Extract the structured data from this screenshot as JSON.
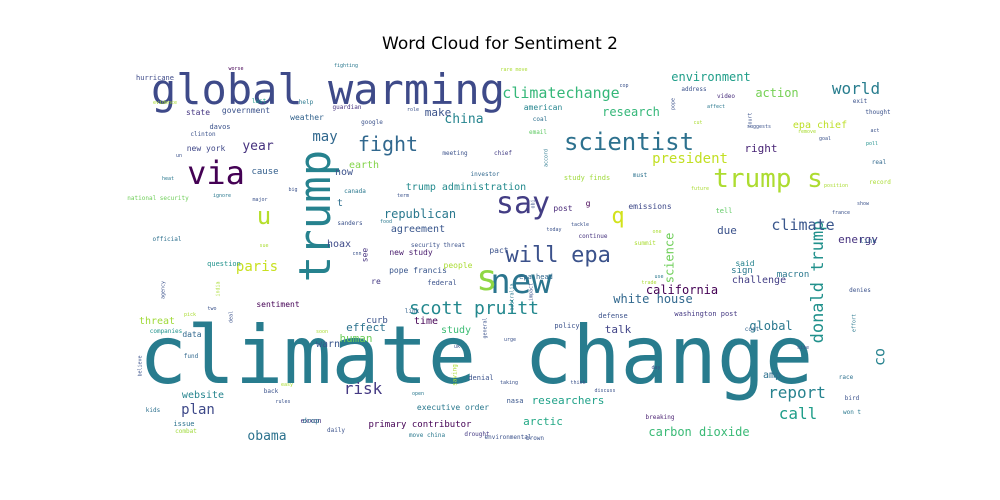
{
  "chart_data": {
    "type": "wordcloud",
    "title": "Word Cloud for Sentiment 2",
    "words": [
      {
        "text": "climate change",
        "weight": 100,
        "color": "#287c8e"
      },
      {
        "text": "global warming",
        "weight": 58,
        "color": "#3e4a89"
      },
      {
        "text": "trump",
        "weight": 52,
        "color": "#26828e",
        "vertical": true
      },
      {
        "text": "new",
        "weight": 40,
        "color": "#2b758e"
      },
      {
        "text": "s",
        "weight": 40,
        "color": "#8fd744"
      },
      {
        "text": "via",
        "weight": 38,
        "color": "#440154"
      },
      {
        "text": "say",
        "weight": 36,
        "color": "#433d84"
      },
      {
        "text": "trump s",
        "weight": 34,
        "color": "#addc30"
      },
      {
        "text": "scientist",
        "weight": 30,
        "color": "#2d718e"
      },
      {
        "text": "will",
        "weight": 28,
        "color": "#3b518b"
      },
      {
        "text": "epa",
        "weight": 28,
        "color": "#3b528b"
      },
      {
        "text": "fight",
        "weight": 26,
        "color": "#31688e"
      },
      {
        "text": "u",
        "weight": 26,
        "color": "#b5de2b"
      },
      {
        "text": "q",
        "weight": 24,
        "color": "#d2e21b"
      },
      {
        "text": "scott pruitt",
        "weight": 22,
        "color": "#23888e"
      },
      {
        "text": "donald trump",
        "weight": 20,
        "color": "#21918c",
        "vertical": true
      },
      {
        "text": "report",
        "weight": 19,
        "color": "#26828e"
      },
      {
        "text": "call",
        "weight": 19,
        "color": "#1f9e89"
      },
      {
        "text": "risk",
        "weight": 19,
        "color": "#443983"
      },
      {
        "text": "world",
        "weight": 18,
        "color": "#287d8e"
      },
      {
        "text": "climatechange",
        "weight": 17,
        "color": "#35b779"
      },
      {
        "text": "climate",
        "weight": 17,
        "color": "#39568c"
      },
      {
        "text": "paris",
        "weight": 17,
        "color": "#c8e020"
      },
      {
        "text": "plan",
        "weight": 17,
        "color": "#3e4989"
      },
      {
        "text": "obama",
        "weight": 16,
        "color": "#2c728e"
      },
      {
        "text": "co",
        "weight": 16,
        "color": "#26828e",
        "vertical": true
      },
      {
        "text": "year",
        "weight": 16,
        "color": "#46327e"
      },
      {
        "text": "president",
        "weight": 16,
        "color": "#c2df23"
      },
      {
        "text": "china",
        "weight": 15,
        "color": "#25848e"
      },
      {
        "text": "may",
        "weight": 15,
        "color": "#31688e"
      },
      {
        "text": "make",
        "weight": 14,
        "color": "#3b528b"
      },
      {
        "text": "science",
        "weight": 14,
        "color": "#6ece58",
        "vertical": true
      },
      {
        "text": "california",
        "weight": 14,
        "color": "#440154"
      },
      {
        "text": "republican",
        "weight": 14,
        "color": "#2a788e"
      },
      {
        "text": "research",
        "weight": 14,
        "color": "#35b779"
      },
      {
        "text": "environment",
        "weight": 14,
        "color": "#1f9e89"
      },
      {
        "text": "white house",
        "weight": 14,
        "color": "#31688e"
      },
      {
        "text": "carbon dioxide",
        "weight": 14,
        "color": "#3aba76"
      },
      {
        "text": "global",
        "weight": 14,
        "color": "#2a788e"
      },
      {
        "text": "action",
        "weight": 14,
        "color": "#75d054"
      },
      {
        "text": "right",
        "weight": 14,
        "color": "#482475"
      },
      {
        "text": "due",
        "weight": 13,
        "color": "#3b528b"
      },
      {
        "text": "energy",
        "weight": 13,
        "color": "#46327e"
      },
      {
        "text": "researchers",
        "weight": 13,
        "color": "#1fa188"
      },
      {
        "text": "arctic",
        "weight": 13,
        "color": "#22a884"
      },
      {
        "text": "talk",
        "weight": 13,
        "color": "#414487"
      },
      {
        "text": "human",
        "weight": 13,
        "color": "#6ccd5a"
      },
      {
        "text": "effect",
        "weight": 12,
        "color": "#2c728e"
      },
      {
        "text": "threat",
        "weight": 12,
        "color": "#a0da39"
      },
      {
        "text": "warn",
        "weight": 12,
        "color": "#39558c"
      },
      {
        "text": "epa chief",
        "weight": 12,
        "color": "#bddf26"
      },
      {
        "text": "study",
        "weight": 12,
        "color": "#3dbc74"
      },
      {
        "text": "website",
        "weight": 12,
        "color": "#25848e"
      },
      {
        "text": "hoax",
        "weight": 12,
        "color": "#3e4a89"
      },
      {
        "text": "time",
        "weight": 12,
        "color": "#440154"
      },
      {
        "text": "amp",
        "weight": 12,
        "color": "#2d708e"
      },
      {
        "text": "earth",
        "weight": 11,
        "color": "#84d44b"
      },
      {
        "text": "agreement",
        "weight": 11,
        "color": "#39568c"
      },
      {
        "text": "trump administration",
        "weight": 11,
        "color": "#238a8d"
      },
      {
        "text": "challenge",
        "weight": 11,
        "color": "#433e85"
      },
      {
        "text": "now",
        "weight": 11,
        "color": "#3b518b"
      },
      {
        "text": "t",
        "weight": 11,
        "color": "#2e6f8e"
      },
      {
        "text": "american",
        "weight": 10,
        "color": "#25858e"
      },
      {
        "text": "cause",
        "weight": 10,
        "color": "#35608d"
      },
      {
        "text": "state",
        "weight": 10,
        "color": "#453581"
      },
      {
        "text": "government",
        "weight": 10,
        "color": "#3b528b"
      },
      {
        "text": "weather",
        "weight": 10,
        "color": "#33638d"
      },
      {
        "text": "new york",
        "weight": 10,
        "color": "#3f4788"
      },
      {
        "text": "new study",
        "weight": 10,
        "color": "#481b6d"
      },
      {
        "text": "primary contributor",
        "weight": 10,
        "color": "#440154"
      },
      {
        "text": "executive order",
        "weight": 10,
        "color": "#2a788e"
      },
      {
        "text": "curb",
        "weight": 10,
        "color": "#3b528b"
      },
      {
        "text": "said",
        "weight": 10,
        "color": "#25838e"
      },
      {
        "text": "sign",
        "weight": 10,
        "color": "#2a788e"
      },
      {
        "text": "post",
        "weight": 10,
        "color": "#482878"
      },
      {
        "text": "pope francis",
        "weight": 9,
        "color": "#39568c"
      },
      {
        "text": "macron",
        "weight": 10,
        "color": "#2a788e"
      },
      {
        "text": "question",
        "weight": 9,
        "color": "#20928c"
      },
      {
        "text": "data",
        "weight": 9,
        "color": "#31688e"
      },
      {
        "text": "issue",
        "weight": 9,
        "color": "#2c728e"
      },
      {
        "text": "emissions",
        "weight": 9,
        "color": "#3e4989"
      },
      {
        "text": "g",
        "weight": 9,
        "color": "#440154"
      },
      {
        "text": "pact",
        "weight": 9,
        "color": "#3b528b"
      },
      {
        "text": "re",
        "weight": 9,
        "color": "#443983"
      },
      {
        "text": "see",
        "weight": 8,
        "color": "#46337f",
        "vertical": true
      },
      {
        "text": "hurricane",
        "weight": 8,
        "color": "#3e4a89"
      },
      {
        "text": "davos",
        "weight": 8,
        "color": "#3b528b"
      },
      {
        "text": "sentiment",
        "weight": 8,
        "color": "#440154"
      },
      {
        "text": "study finds",
        "weight": 8,
        "color": "#9fda3a"
      },
      {
        "text": "people",
        "weight": 8,
        "color": "#aadc32"
      },
      {
        "text": "federal",
        "weight": 8,
        "color": "#3b528b"
      },
      {
        "text": "epa head",
        "weight": 8,
        "color": "#31688e"
      },
      {
        "text": "policy",
        "weight": 8,
        "color": "#3b528b"
      },
      {
        "text": "defense",
        "weight": 8,
        "color": "#3b528b"
      },
      {
        "text": "exxon",
        "weight": 8,
        "color": "#46327e"
      },
      {
        "text": "link",
        "weight": 8,
        "color": "#33638d"
      },
      {
        "text": "drop",
        "weight": 8,
        "color": "#2c728e"
      },
      {
        "text": "link",
        "weight": 8,
        "color": "#33638d"
      },
      {
        "text": "denial",
        "weight": 7,
        "color": "#3b528b"
      },
      {
        "text": "nasa",
        "weight": 8,
        "color": "#39568c"
      },
      {
        "text": "breaking",
        "weight": 8,
        "color": "#481f70"
      },
      {
        "text": "washington post",
        "weight": 7,
        "color": "#443983"
      },
      {
        "text": "tell",
        "weight": 8,
        "color": "#5ec962"
      },
      {
        "text": "cost",
        "weight": 8,
        "color": "#33638d"
      },
      {
        "text": "exit",
        "weight": 7,
        "color": "#3b528b"
      },
      {
        "text": "video",
        "weight": 7,
        "color": "#472d7b"
      },
      {
        "text": "address",
        "weight": 7,
        "color": "#3b528b"
      },
      {
        "text": "coal",
        "weight": 7,
        "color": "#2d708e"
      },
      {
        "text": "email",
        "weight": 7,
        "color": "#5ec962"
      },
      {
        "text": "chief",
        "weight": 7,
        "color": "#433d84"
      },
      {
        "text": "google",
        "weight": 7,
        "color": "#3b528b"
      },
      {
        "text": "help",
        "weight": 7,
        "color": "#2a788e"
      },
      {
        "text": "last",
        "weight": 7,
        "color": "#1f9a8a"
      },
      {
        "text": "guardian",
        "weight": 7,
        "color": "#46337e"
      },
      {
        "text": "clinton",
        "weight": 6,
        "color": "#3b528b"
      },
      {
        "text": "meeting",
        "weight": 6,
        "color": "#3b528b"
      },
      {
        "text": "investor",
        "weight": 6,
        "color": "#31688e"
      },
      {
        "text": "must",
        "weight": 6,
        "color": "#2c728e"
      },
      {
        "text": "national security",
        "weight": 6,
        "color": "#6ece58"
      },
      {
        "text": "canada",
        "weight": 6,
        "color": "#2a788e"
      },
      {
        "text": "sanders",
        "weight": 6,
        "color": "#3b528b"
      },
      {
        "text": "official",
        "weight": 6,
        "color": "#2d708e"
      },
      {
        "text": "security threat",
        "weight": 6,
        "color": "#3b528b"
      },
      {
        "text": "continue",
        "weight": 6,
        "color": "#46337e"
      },
      {
        "text": "summit",
        "weight": 6,
        "color": "#aadc32"
      },
      {
        "text": "companies",
        "weight": 6,
        "color": "#20928c"
      },
      {
        "text": "fund",
        "weight": 6,
        "color": "#31688e"
      },
      {
        "text": "back",
        "weight": 6,
        "color": "#3b528b"
      },
      {
        "text": "kids",
        "weight": 6,
        "color": "#2d708e"
      },
      {
        "text": "combat",
        "weight": 6,
        "color": "#9fda3a"
      },
      {
        "text": "daily",
        "weight": 6,
        "color": "#3b528b"
      },
      {
        "text": "move china",
        "weight": 6,
        "color": "#2a788e"
      },
      {
        "text": "drought",
        "weight": 6,
        "color": "#443983"
      },
      {
        "text": "environmental",
        "weight": 6,
        "color": "#3b528b"
      },
      {
        "text": "brown",
        "weight": 6,
        "color": "#3b528b"
      },
      {
        "text": "race",
        "weight": 6,
        "color": "#2d708e"
      },
      {
        "text": "bird",
        "weight": 6,
        "color": "#3b528b"
      },
      {
        "text": "won t",
        "weight": 6,
        "color": "#2a788e"
      },
      {
        "text": "record",
        "weight": 6,
        "color": "#aadc32"
      },
      {
        "text": "real",
        "weight": 6,
        "color": "#31688e"
      },
      {
        "text": "denies",
        "weight": 6,
        "color": "#3b528b"
      },
      {
        "text": "thought",
        "weight": 6,
        "color": "#3b528b"
      },
      {
        "text": "fighting",
        "weight": 6,
        "color": "#2a788e"
      },
      {
        "text": "rare move",
        "weight": 5,
        "color": "#aadc32"
      },
      {
        "text": "worse",
        "weight": 5,
        "color": "#440154"
      },
      {
        "text": "evidence",
        "weight": 5,
        "color": "#aadc32"
      },
      {
        "text": "pope",
        "weight": 5,
        "color": "#3b528b",
        "vertical": true
      },
      {
        "text": "affect",
        "weight": 5,
        "color": "#2a788e"
      },
      {
        "text": "goal",
        "weight": 5,
        "color": "#3b528b"
      },
      {
        "text": "act",
        "weight": 5,
        "color": "#3b528b"
      },
      {
        "text": "poll",
        "weight": 5,
        "color": "#21918c"
      },
      {
        "text": "remove",
        "weight": 5,
        "color": "#aadc32"
      },
      {
        "text": "suggests",
        "weight": 5,
        "color": "#3b528b"
      },
      {
        "text": "cut",
        "weight": 5,
        "color": "#aadc32"
      },
      {
        "text": "cop",
        "weight": 5,
        "color": "#3b528b"
      },
      {
        "text": "role",
        "weight": 5,
        "color": "#3b528b"
      },
      {
        "text": "un",
        "weight": 5,
        "color": "#3b528b"
      },
      {
        "text": "heat",
        "weight": 5,
        "color": "#2a788e"
      },
      {
        "text": "ignore",
        "weight": 5,
        "color": "#2a788e"
      },
      {
        "text": "major",
        "weight": 5,
        "color": "#3b528b"
      },
      {
        "text": "big",
        "weight": 5,
        "color": "#3b528b"
      },
      {
        "text": "sue",
        "weight": 5,
        "color": "#aadc32"
      },
      {
        "text": "cnn",
        "weight": 5,
        "color": "#3b528b"
      },
      {
        "text": "today",
        "weight": 5,
        "color": "#3b528b"
      },
      {
        "text": "tackle",
        "weight": 5,
        "color": "#3b528b"
      },
      {
        "text": "term",
        "weight": 5,
        "color": "#3b528b"
      },
      {
        "text": "food",
        "weight": 5,
        "color": "#2a788e"
      },
      {
        "text": "one",
        "weight": 6,
        "color": "#aadc32"
      },
      {
        "text": "future",
        "weight": 5,
        "color": "#aadc32"
      },
      {
        "text": "position",
        "weight": 5,
        "color": "#aadc32"
      },
      {
        "text": "show",
        "weight": 6,
        "color": "#3b528b"
      },
      {
        "text": "france",
        "weight": 5,
        "color": "#3b528b"
      },
      {
        "text": "use",
        "weight": 5,
        "color": "#2a788e"
      },
      {
        "text": "trade",
        "weight": 5,
        "color": "#aadc32"
      },
      {
        "text": "agency",
        "weight": 5,
        "color": "#3b528b",
        "vertical": true
      },
      {
        "text": "india",
        "weight": 5,
        "color": "#aadc32",
        "vertical": true
      },
      {
        "text": "two",
        "weight": 5,
        "color": "#3b528b"
      },
      {
        "text": "pick",
        "weight": 6,
        "color": "#aadc32"
      },
      {
        "text": "deal",
        "weight": 6,
        "color": "#3b528b",
        "vertical": true
      },
      {
        "text": "soon",
        "weight": 5,
        "color": "#aadc32"
      },
      {
        "text": "uk",
        "weight": 5,
        "color": "#3b528b"
      },
      {
        "text": "general",
        "weight": 5,
        "color": "#3b528b",
        "vertical": true
      },
      {
        "text": "urge",
        "weight": 5,
        "color": "#3b528b"
      },
      {
        "text": "australia",
        "weight": 5,
        "color": "#2a788e",
        "vertical": true
      },
      {
        "text": "impact",
        "weight": 5,
        "color": "#3b528b",
        "vertical": true
      },
      {
        "text": "obi",
        "weight": 5,
        "color": "#3b528b",
        "vertical": true
      },
      {
        "text": "accord",
        "weight": 5,
        "color": "#2a788e",
        "vertical": true
      },
      {
        "text": "believe",
        "weight": 5,
        "color": "#3b528b",
        "vertical": true
      },
      {
        "text": "easy",
        "weight": 5,
        "color": "#aadc32"
      },
      {
        "text": "rules",
        "weight": 5,
        "color": "#3b528b"
      },
      {
        "text": "open",
        "weight": 5,
        "color": "#2a788e"
      },
      {
        "text": "taking",
        "weight": 6,
        "color": "#3b528b"
      },
      {
        "text": "think",
        "weight": 6,
        "color": "#3b528b"
      },
      {
        "text": "discuss",
        "weight": 5,
        "color": "#3b528b"
      },
      {
        "text": "day",
        "weight": 5,
        "color": "#3b528b"
      },
      {
        "text": "site",
        "weight": 6,
        "color": "#3b528b"
      },
      {
        "text": "effort",
        "weight": 6,
        "color": "#2a788e",
        "vertical": true
      },
      {
        "text": "saving",
        "weight": 5,
        "color": "#aadc32",
        "vertical": true
      },
      {
        "text": "court",
        "weight": 5,
        "color": "#3b528b",
        "vertical": true
      },
      {
        "text": "ocean",
        "weight": 6,
        "color": "#2a788e"
      },
      {
        "text": "ice",
        "weight": 5,
        "color": "#3b528b",
        "vertical": true
      }
    ]
  }
}
